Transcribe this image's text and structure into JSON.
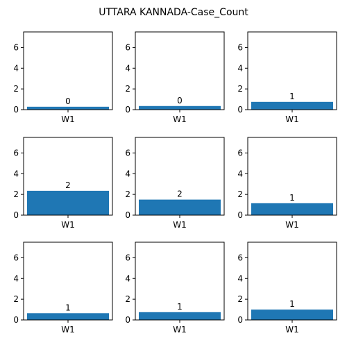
{
  "chart_data": {
    "title": "UTTARA KANNADA-Case_Count",
    "type": "bar",
    "layout": "3x3 grid",
    "ylim": [
      0,
      7.5
    ],
    "yticks": [
      0,
      2,
      4,
      6
    ],
    "bar_color": "#1f77b4",
    "panels": [
      {
        "category": "W1",
        "value": 0.28,
        "label": "0"
      },
      {
        "category": "W1",
        "value": 0.35,
        "label": "0"
      },
      {
        "category": "W1",
        "value": 0.75,
        "label": "1"
      },
      {
        "category": "W1",
        "value": 2.35,
        "label": "2"
      },
      {
        "category": "W1",
        "value": 1.5,
        "label": "2"
      },
      {
        "category": "W1",
        "value": 1.15,
        "label": "1"
      },
      {
        "category": "W1",
        "value": 0.65,
        "label": "1"
      },
      {
        "category": "W1",
        "value": 0.75,
        "label": "1"
      },
      {
        "category": "W1",
        "value": 1.0,
        "label": "1"
      }
    ]
  }
}
